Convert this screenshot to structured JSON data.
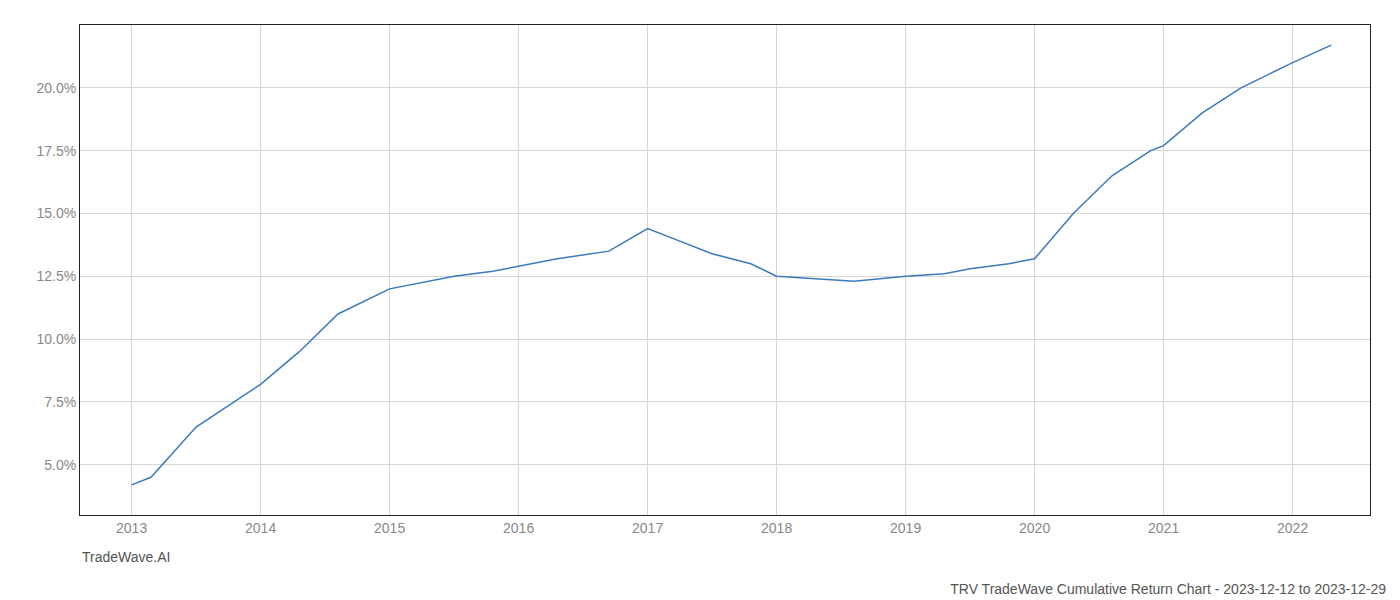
{
  "chart_data": {
    "type": "line",
    "title": "TRV TradeWave Cumulative Return Chart - 2023-12-12 to 2023-12-29",
    "annotations": [
      {
        "text": "TradeWave.AI"
      }
    ],
    "x": [
      2013.0,
      2013.15,
      2013.5,
      2014.0,
      2014.3,
      2014.6,
      2015.0,
      2015.2,
      2015.5,
      2015.8,
      2016.0,
      2016.3,
      2016.7,
      2017.0,
      2017.2,
      2017.5,
      2017.8,
      2018.0,
      2018.3,
      2018.6,
      2019.0,
      2019.3,
      2019.5,
      2019.8,
      2020.0,
      2020.3,
      2020.6,
      2020.9,
      2021.0,
      2021.3,
      2021.6,
      2022.0,
      2022.3
    ],
    "values": [
      4.2,
      4.5,
      6.5,
      8.2,
      9.5,
      11.0,
      12.0,
      12.2,
      12.5,
      12.7,
      12.9,
      13.2,
      13.5,
      14.4,
      14.0,
      13.4,
      13.0,
      12.5,
      12.4,
      12.3,
      12.5,
      12.6,
      12.8,
      13.0,
      13.2,
      15.0,
      16.5,
      17.5,
      17.7,
      19.0,
      20.0,
      21.0,
      21.7
    ],
    "color": "#3a7abf",
    "xlim": [
      2012.6,
      2022.6
    ],
    "ylim": [
      3.0,
      22.5
    ],
    "xticks": [
      2013,
      2014,
      2015,
      2016,
      2017,
      2018,
      2019,
      2020,
      2021,
      2022
    ],
    "yticks": [
      {
        "value": 5.0,
        "label": "5.0%"
      },
      {
        "value": 7.5,
        "label": "7.5%"
      },
      {
        "value": 10.0,
        "label": "10.0%"
      },
      {
        "value": 12.5,
        "label": "12.5%"
      },
      {
        "value": 15.0,
        "label": "15.0%"
      },
      {
        "value": 17.5,
        "label": "17.5%"
      },
      {
        "value": 20.0,
        "label": "20.0%"
      }
    ],
    "grid": true
  }
}
